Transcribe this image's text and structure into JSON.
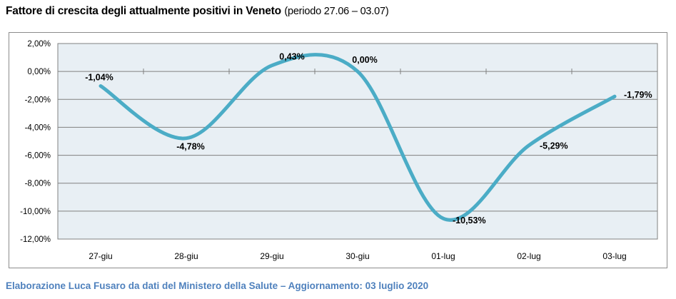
{
  "page": {
    "title_main": "Fattore di crescita degli attualmente positivi in Veneto",
    "title_period": "(periodo 27.06 – 03.07)",
    "footer": "Elaborazione Luca Fusaro da dati del Ministero della Salute – Aggiornamento: 03 luglio 2020"
  },
  "colors": {
    "line": "#4BACC6",
    "plot_bg": "#E8EFF4",
    "grid": "#808080",
    "chart_border": "#8C8C8C",
    "title_text": "#000000",
    "axis_text": "#000000",
    "data_label_text": "#000000",
    "footer_text": "#4F81BD"
  },
  "chart_data": {
    "type": "line",
    "title": "Fattore di crescita degli attualmente positivi in Veneto (periodo 27.06 – 03.07)",
    "categories": [
      "27-giu",
      "28-giu",
      "29-giu",
      "30-giu",
      "01-lug",
      "02-lug",
      "03-lug"
    ],
    "series": [
      {
        "name": "Fattore di crescita",
        "values": [
          -1.04,
          -4.78,
          0.43,
          0.0,
          -10.53,
          -5.29,
          -1.79
        ],
        "point_labels": [
          "-1,04%",
          "-4,78%",
          "0,43%",
          "0,00%",
          "-10,53%",
          "-5,29%",
          "-1,79%"
        ]
      }
    ],
    "xlabel": "",
    "ylabel": "",
    "ylim": [
      -12,
      2
    ],
    "y_tick_values": [
      2,
      0,
      -2,
      -4,
      -6,
      -8,
      -10,
      -12
    ],
    "y_tick_labels": [
      "2,00%",
      "0,00%",
      "-2,00%",
      "-4,00%",
      "-6,00%",
      "-8,00%",
      "-10,00%",
      "-12,00%"
    ],
    "grid": "horizontal",
    "legend": "none",
    "smoothed_line": true,
    "unit": "percent"
  }
}
